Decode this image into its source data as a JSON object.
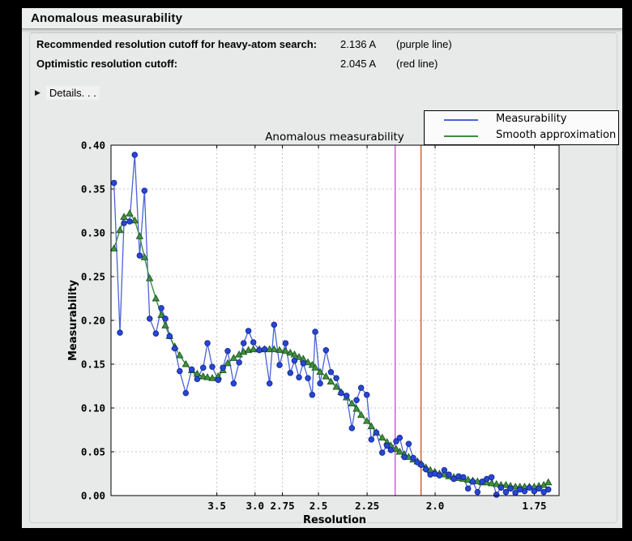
{
  "window": {
    "title": "Anomalous measurability"
  },
  "summary": {
    "rows": [
      {
        "label": "Recommended resolution cutoff for heavy-atom search:",
        "value": "2.136 A",
        "note": "(purple line)"
      },
      {
        "label": "Optimistic resolution cutoff:",
        "value": "2.045 A",
        "note": "(red line)"
      }
    ],
    "details_label": "Details. . .",
    "details_arrow": "▶"
  },
  "legend": {
    "items": [
      {
        "label": "Measurability",
        "color": "#4A62D8"
      },
      {
        "label": "Smooth approximation",
        "color": "#3F8E3F"
      }
    ]
  },
  "chart_data": {
    "type": "line",
    "title": "Anomalous measurability",
    "xlabel": "Resolution",
    "ylabel": "Measurability",
    "x_axis": {
      "scale": "1_over_d_squared",
      "unit": "Angstrom",
      "s_min": 0.0,
      "s_max": 0.3456,
      "tick_d": [
        3.5,
        3.0,
        2.75,
        2.5,
        2.25,
        2.0,
        1.75
      ],
      "tick_labels": [
        "3.5",
        "3.0",
        "2.75",
        "2.5",
        "2.25",
        "2.0",
        "1.75"
      ]
    },
    "y_axis": {
      "min": 0.0,
      "max": 0.4,
      "tick_step": 0.05,
      "tick_labels": [
        "0.00",
        "0.05",
        "0.10",
        "0.15",
        "0.20",
        "0.25",
        "0.30",
        "0.35",
        "0.40"
      ]
    },
    "grid": {
      "on": true,
      "color": "#C4C4C4",
      "dash": "2,3"
    },
    "vlines": [
      {
        "d": 2.136,
        "color": "#C34FC6",
        "name": "purple-cutoff-line",
        "meaning": "Recommended resolution cutoff for heavy-atom search"
      },
      {
        "d": 2.045,
        "color": "#D5491C",
        "name": "red-cutoff-line",
        "meaning": "Optimistic resolution cutoff"
      }
    ],
    "x_s": [
      0.0023,
      0.0069,
      0.01,
      0.0144,
      0.0183,
      0.0221,
      0.0258,
      0.0298,
      0.0346,
      0.0388,
      0.0419,
      0.0452,
      0.0492,
      0.053,
      0.0577,
      0.0623,
      0.0665,
      0.0711,
      0.0744,
      0.0781,
      0.0827,
      0.0863,
      0.09,
      0.0946,
      0.0988,
      0.1023,
      0.106,
      0.1098,
      0.1144,
      0.1185,
      0.1223,
      0.1258,
      0.13,
      0.1346,
      0.1383,
      0.1415,
      0.145,
      0.1483,
      0.1519,
      0.1552,
      0.1575,
      0.1613,
      0.1658,
      0.1696,
      0.1738,
      0.1775,
      0.1817,
      0.1858,
      0.1894,
      0.1929,
      0.1973,
      0.2008,
      0.2046,
      0.2092,
      0.2129,
      0.2158,
      0.22,
      0.2227,
      0.2263,
      0.2296,
      0.2331,
      0.2363,
      0.2394,
      0.2429,
      0.2463,
      0.2498,
      0.2533,
      0.2571,
      0.2606,
      0.2644,
      0.2681,
      0.2717,
      0.2754,
      0.279,
      0.2827,
      0.2863,
      0.2898,
      0.2935,
      0.2973,
      0.3008,
      0.3046,
      0.3081,
      0.3119,
      0.3154,
      0.319,
      0.3227,
      0.3264,
      0.33,
      0.3338,
      0.3373
    ],
    "series": [
      {
        "name": "Measurability",
        "marker": "circle",
        "line_color": "#4A62D8",
        "marker_fill": "#2748D0",
        "marker_edge": "#14259B",
        "values": [
          0.357,
          0.186,
          0.311,
          0.313,
          0.389,
          0.274,
          0.348,
          0.202,
          0.185,
          0.214,
          0.202,
          0.182,
          0.168,
          0.142,
          0.117,
          0.144,
          0.133,
          0.146,
          0.174,
          0.147,
          0.132,
          0.146,
          0.165,
          0.128,
          0.152,
          0.174,
          0.188,
          0.175,
          0.166,
          0.167,
          0.128,
          0.195,
          0.149,
          0.174,
          0.14,
          0.154,
          0.135,
          0.151,
          0.134,
          0.115,
          0.187,
          0.128,
          0.166,
          0.141,
          0.134,
          0.117,
          0.114,
          0.077,
          0.109,
          0.123,
          0.115,
          0.064,
          0.072,
          0.049,
          0.057,
          0.052,
          0.062,
          0.066,
          0.044,
          0.059,
          0.043,
          0.038,
          0.035,
          0.03,
          0.024,
          0.025,
          0.023,
          0.029,
          0.024,
          0.019,
          0.022,
          0.021,
          0.008,
          0.016,
          0.004,
          0.016,
          0.019,
          0.021,
          0.001,
          0.009,
          0.004,
          0.008,
          0.003,
          0.007,
          0.005,
          0.009,
          0.005,
          0.008,
          0.004,
          0.007
        ]
      },
      {
        "name": "Smooth approximation",
        "marker": "triangle",
        "line_color": "#3F8E3F",
        "marker_fill": "#3F9140",
        "marker_edge": "#1D571D",
        "values": [
          0.282,
          0.303,
          0.318,
          0.322,
          0.314,
          0.296,
          0.272,
          0.248,
          0.225,
          0.206,
          0.194,
          0.182,
          0.17,
          0.16,
          0.15,
          0.143,
          0.139,
          0.136,
          0.135,
          0.134,
          0.136,
          0.143,
          0.151,
          0.157,
          0.161,
          0.164,
          0.166,
          0.167,
          0.167,
          0.167,
          0.167,
          0.167,
          0.166,
          0.165,
          0.163,
          0.161,
          0.158,
          0.156,
          0.152,
          0.149,
          0.146,
          0.141,
          0.136,
          0.13,
          0.124,
          0.118,
          0.112,
          0.105,
          0.099,
          0.092,
          0.085,
          0.079,
          0.072,
          0.066,
          0.061,
          0.057,
          0.053,
          0.05,
          0.047,
          0.044,
          0.041,
          0.039,
          0.036,
          0.032,
          0.029,
          0.027,
          0.025,
          0.024,
          0.022,
          0.021,
          0.02,
          0.019,
          0.018,
          0.017,
          0.016,
          0.015,
          0.015,
          0.014,
          0.013,
          0.012,
          0.012,
          0.011,
          0.01,
          0.01,
          0.01,
          0.01,
          0.01,
          0.011,
          0.012,
          0.015
        ]
      }
    ]
  }
}
